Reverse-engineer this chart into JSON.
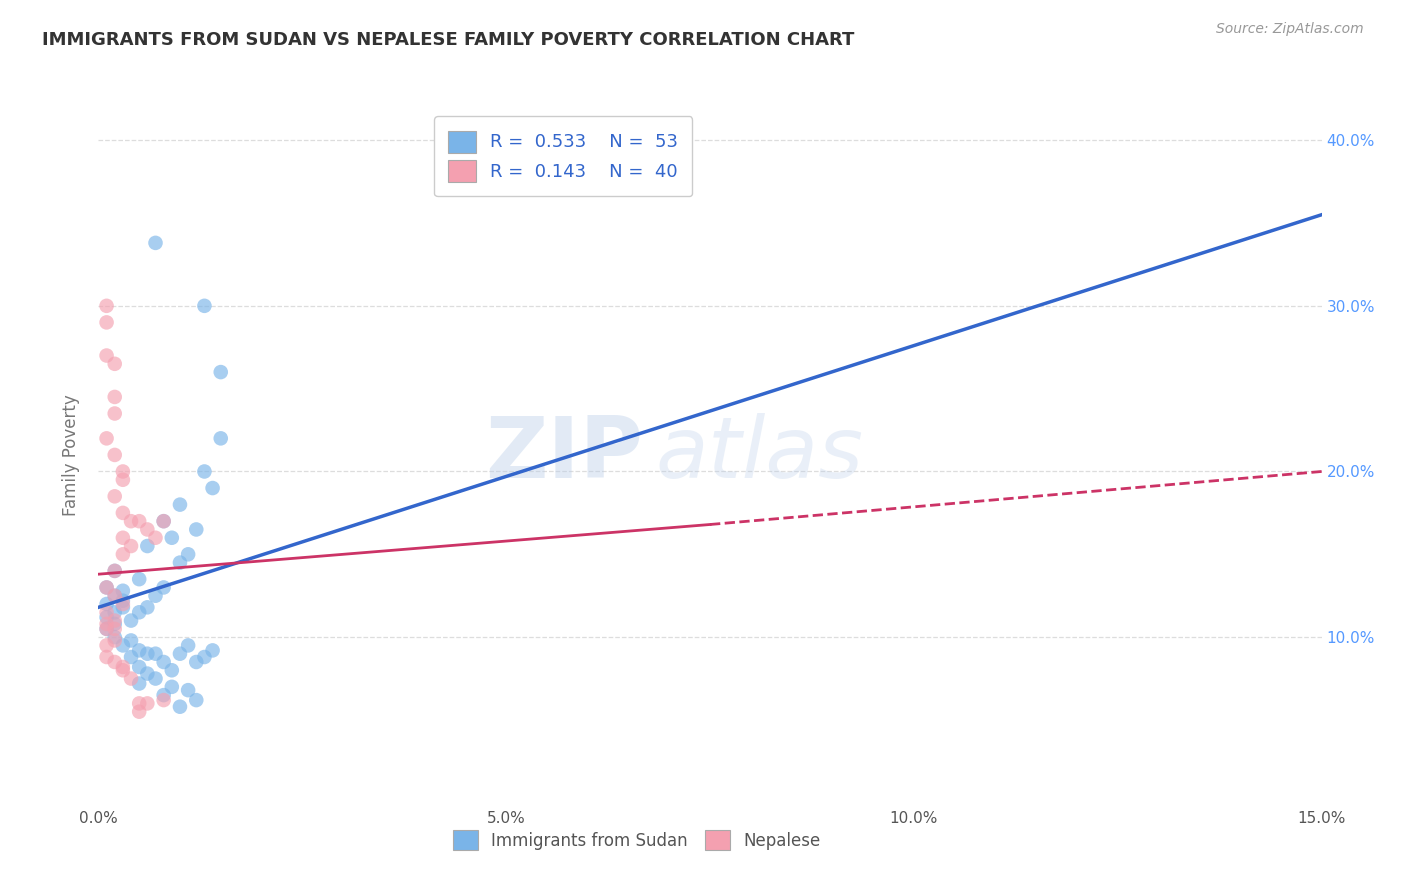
{
  "title": "IMMIGRANTS FROM SUDAN VS NEPALESE FAMILY POVERTY CORRELATION CHART",
  "source": "Source: ZipAtlas.com",
  "ylabel": "Family Poverty",
  "xlim": [
    0.0,
    0.15
  ],
  "ylim": [
    0.0,
    0.42
  ],
  "xticks": [
    0.0,
    0.05,
    0.1,
    0.15
  ],
  "xtick_labels": [
    "0.0%",
    "5.0%",
    "10.0%",
    "15.0%"
  ],
  "yticks": [
    0.1,
    0.2,
    0.3,
    0.4
  ],
  "ytick_labels": [
    "10.0%",
    "20.0%",
    "30.0%",
    "40.0%"
  ],
  "legend_labels": [
    "Immigrants from Sudan",
    "Nepalese"
  ],
  "legend_r_n": [
    {
      "R": "0.533",
      "N": "53"
    },
    {
      "R": "0.143",
      "N": "40"
    }
  ],
  "sudan_color": "#7ab4e8",
  "nepal_color": "#f4a0b0",
  "trend_sudan_color": "#3366cc",
  "trend_nepal_color": "#cc3366",
  "watermark_zip": "ZIP",
  "watermark_atlas": "atlas",
  "background_color": "#ffffff",
  "grid_color": "#dddddd",
  "sudan_line": {
    "x0": 0.0,
    "y0": 0.118,
    "x1": 0.15,
    "y1": 0.355
  },
  "nepal_line_solid": {
    "x0": 0.0,
    "y0": 0.138,
    "x1": 0.075,
    "y1": 0.168
  },
  "nepal_line_dashed": {
    "x0": 0.075,
    "y0": 0.168,
    "x1": 0.15,
    "y1": 0.2
  },
  "sudan_points": [
    [
      0.001,
      0.12
    ],
    [
      0.001,
      0.112
    ],
    [
      0.001,
      0.105
    ],
    [
      0.001,
      0.13
    ],
    [
      0.002,
      0.115
    ],
    [
      0.002,
      0.125
    ],
    [
      0.002,
      0.108
    ],
    [
      0.002,
      0.14
    ],
    [
      0.002,
      0.1
    ],
    [
      0.003,
      0.118
    ],
    [
      0.003,
      0.128
    ],
    [
      0.003,
      0.122
    ],
    [
      0.003,
      0.095
    ],
    [
      0.004,
      0.11
    ],
    [
      0.004,
      0.098
    ],
    [
      0.004,
      0.088
    ],
    [
      0.005,
      0.135
    ],
    [
      0.005,
      0.115
    ],
    [
      0.005,
      0.092
    ],
    [
      0.005,
      0.082
    ],
    [
      0.005,
      0.072
    ],
    [
      0.006,
      0.118
    ],
    [
      0.006,
      0.155
    ],
    [
      0.006,
      0.09
    ],
    [
      0.006,
      0.078
    ],
    [
      0.007,
      0.125
    ],
    [
      0.007,
      0.09
    ],
    [
      0.007,
      0.075
    ],
    [
      0.007,
      0.338
    ],
    [
      0.008,
      0.13
    ],
    [
      0.008,
      0.17
    ],
    [
      0.008,
      0.085
    ],
    [
      0.008,
      0.065
    ],
    [
      0.009,
      0.16
    ],
    [
      0.009,
      0.08
    ],
    [
      0.009,
      0.07
    ],
    [
      0.01,
      0.145
    ],
    [
      0.01,
      0.18
    ],
    [
      0.01,
      0.09
    ],
    [
      0.01,
      0.058
    ],
    [
      0.011,
      0.15
    ],
    [
      0.011,
      0.095
    ],
    [
      0.011,
      0.068
    ],
    [
      0.012,
      0.165
    ],
    [
      0.012,
      0.085
    ],
    [
      0.012,
      0.062
    ],
    [
      0.013,
      0.2
    ],
    [
      0.013,
      0.088
    ],
    [
      0.013,
      0.3
    ],
    [
      0.014,
      0.19
    ],
    [
      0.014,
      0.092
    ],
    [
      0.015,
      0.22
    ],
    [
      0.015,
      0.26
    ]
  ],
  "nepal_points": [
    [
      0.001,
      0.3
    ],
    [
      0.001,
      0.29
    ],
    [
      0.001,
      0.27
    ],
    [
      0.001,
      0.22
    ],
    [
      0.001,
      0.115
    ],
    [
      0.001,
      0.105
    ],
    [
      0.001,
      0.095
    ],
    [
      0.001,
      0.088
    ],
    [
      0.001,
      0.13
    ],
    [
      0.002,
      0.265
    ],
    [
      0.002,
      0.245
    ],
    [
      0.002,
      0.235
    ],
    [
      0.002,
      0.21
    ],
    [
      0.002,
      0.125
    ],
    [
      0.002,
      0.11
    ],
    [
      0.002,
      0.098
    ],
    [
      0.002,
      0.085
    ],
    [
      0.002,
      0.14
    ],
    [
      0.003,
      0.2
    ],
    [
      0.003,
      0.195
    ],
    [
      0.003,
      0.175
    ],
    [
      0.003,
      0.16
    ],
    [
      0.003,
      0.15
    ],
    [
      0.003,
      0.12
    ],
    [
      0.003,
      0.082
    ],
    [
      0.003,
      0.08
    ],
    [
      0.004,
      0.17
    ],
    [
      0.004,
      0.155
    ],
    [
      0.004,
      0.075
    ],
    [
      0.005,
      0.17
    ],
    [
      0.005,
      0.055
    ],
    [
      0.006,
      0.165
    ],
    [
      0.006,
      0.06
    ],
    [
      0.007,
      0.16
    ],
    [
      0.008,
      0.17
    ],
    [
      0.008,
      0.062
    ],
    [
      0.002,
      0.185
    ],
    [
      0.001,
      0.108
    ],
    [
      0.002,
      0.105
    ],
    [
      0.005,
      0.06
    ]
  ]
}
